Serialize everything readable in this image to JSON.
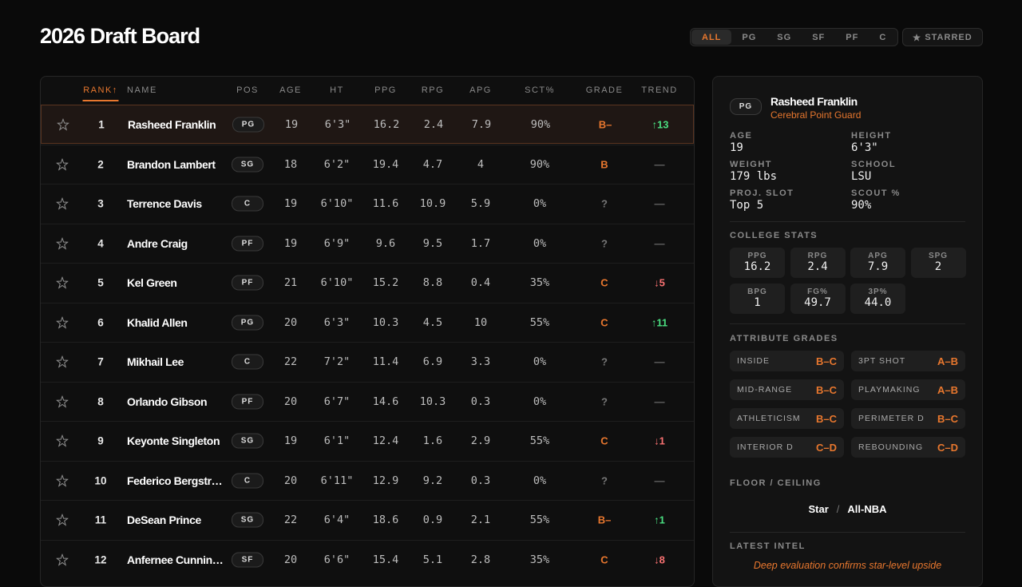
{
  "header": {
    "title": "2026 Draft Board",
    "filters": [
      "ALL",
      "PG",
      "SG",
      "SF",
      "PF",
      "C"
    ],
    "starred": "STARRED"
  },
  "table": {
    "columns": [
      "RANK↑",
      "NAME",
      "POS",
      "AGE",
      "HT",
      "PPG",
      "RPG",
      "APG",
      "SCT%",
      "GRADE",
      "TREND"
    ],
    "rows": [
      [
        "1",
        "Rasheed Franklin",
        "PG",
        "19",
        "6'3\"",
        "16.2",
        "2.4",
        "7.9",
        "90%",
        "B–",
        "↑13"
      ],
      [
        "2",
        "Brandon Lambert",
        "SG",
        "18",
        "6'2\"",
        "19.4",
        "4.7",
        "4",
        "90%",
        "B",
        "—"
      ],
      [
        "3",
        "Terrence Davis",
        "C",
        "19",
        "6'10\"",
        "11.6",
        "10.9",
        "5.9",
        "0%",
        "?",
        "—"
      ],
      [
        "4",
        "Andre Craig",
        "PF",
        "19",
        "6'9\"",
        "9.6",
        "9.5",
        "1.7",
        "0%",
        "?",
        "—"
      ],
      [
        "5",
        "Kel Green",
        "PF",
        "21",
        "6'10\"",
        "15.2",
        "8.8",
        "0.4",
        "35%",
        "C",
        "↓5"
      ],
      [
        "6",
        "Khalid Allen",
        "PG",
        "20",
        "6'3\"",
        "10.3",
        "4.5",
        "10",
        "55%",
        "C",
        "↑11"
      ],
      [
        "7",
        "Mikhail Lee",
        "C",
        "22",
        "7'2\"",
        "11.4",
        "6.9",
        "3.3",
        "0%",
        "?",
        "—"
      ],
      [
        "8",
        "Orlando Gibson",
        "PF",
        "20",
        "6'7\"",
        "14.6",
        "10.3",
        "0.3",
        "0%",
        "?",
        "—"
      ],
      [
        "9",
        "Keyonte Singleton",
        "SG",
        "19",
        "6'1\"",
        "12.4",
        "1.6",
        "2.9",
        "55%",
        "C",
        "↓1"
      ],
      [
        "10",
        "Federico Bergstr…",
        "C",
        "20",
        "6'11\"",
        "12.9",
        "9.2",
        "0.3",
        "0%",
        "?",
        "—"
      ],
      [
        "11",
        "DeSean Prince",
        "SG",
        "22",
        "6'4\"",
        "18.6",
        "0.9",
        "2.1",
        "55%",
        "B–",
        "↑1"
      ],
      [
        "12",
        "Anfernee Cunnin…",
        "SF",
        "20",
        "6'6\"",
        "15.4",
        "5.1",
        "2.8",
        "35%",
        "C",
        "↓8"
      ]
    ]
  },
  "detail": {
    "pos": "PG",
    "name": "Rasheed Franklin",
    "role": "Cerebral Point Guard",
    "info": [
      [
        "AGE",
        "19"
      ],
      [
        "HEIGHT",
        "6'3\""
      ],
      [
        "WEIGHT",
        "179 lbs"
      ],
      [
        "SCHOOL",
        "LSU"
      ],
      [
        "PROJ. SLOT",
        "Top 5"
      ],
      [
        "SCOUT %",
        "90%"
      ]
    ],
    "stats_heading": "COLLEGE STATS",
    "stats": [
      [
        "PPG",
        "16.2"
      ],
      [
        "RPG",
        "2.4"
      ],
      [
        "APG",
        "7.9"
      ],
      [
        "SPG",
        "2"
      ],
      [
        "BPG",
        "1"
      ],
      [
        "FG%",
        "49.7"
      ],
      [
        "3P%",
        "44.0"
      ]
    ],
    "grades_heading": "ATTRIBUTE GRADES",
    "grades": [
      [
        "INSIDE",
        "B–C"
      ],
      [
        "3PT SHOT",
        "A–B"
      ],
      [
        "MID-RANGE",
        "B–C"
      ],
      [
        "PLAYMAKING",
        "A–B"
      ],
      [
        "ATHLETICISM",
        "B–C"
      ],
      [
        "PERIMETER D",
        "B–C"
      ],
      [
        "INTERIOR D",
        "C–D"
      ],
      [
        "REBOUNDING",
        "C–D"
      ]
    ],
    "floor_heading": "FLOOR / CEILING",
    "floor": "Star",
    "separator": "/",
    "ceiling": "All-NBA",
    "intel_heading": "LATEST INTEL",
    "intel": "Deep evaluation confirms star-level upside"
  }
}
